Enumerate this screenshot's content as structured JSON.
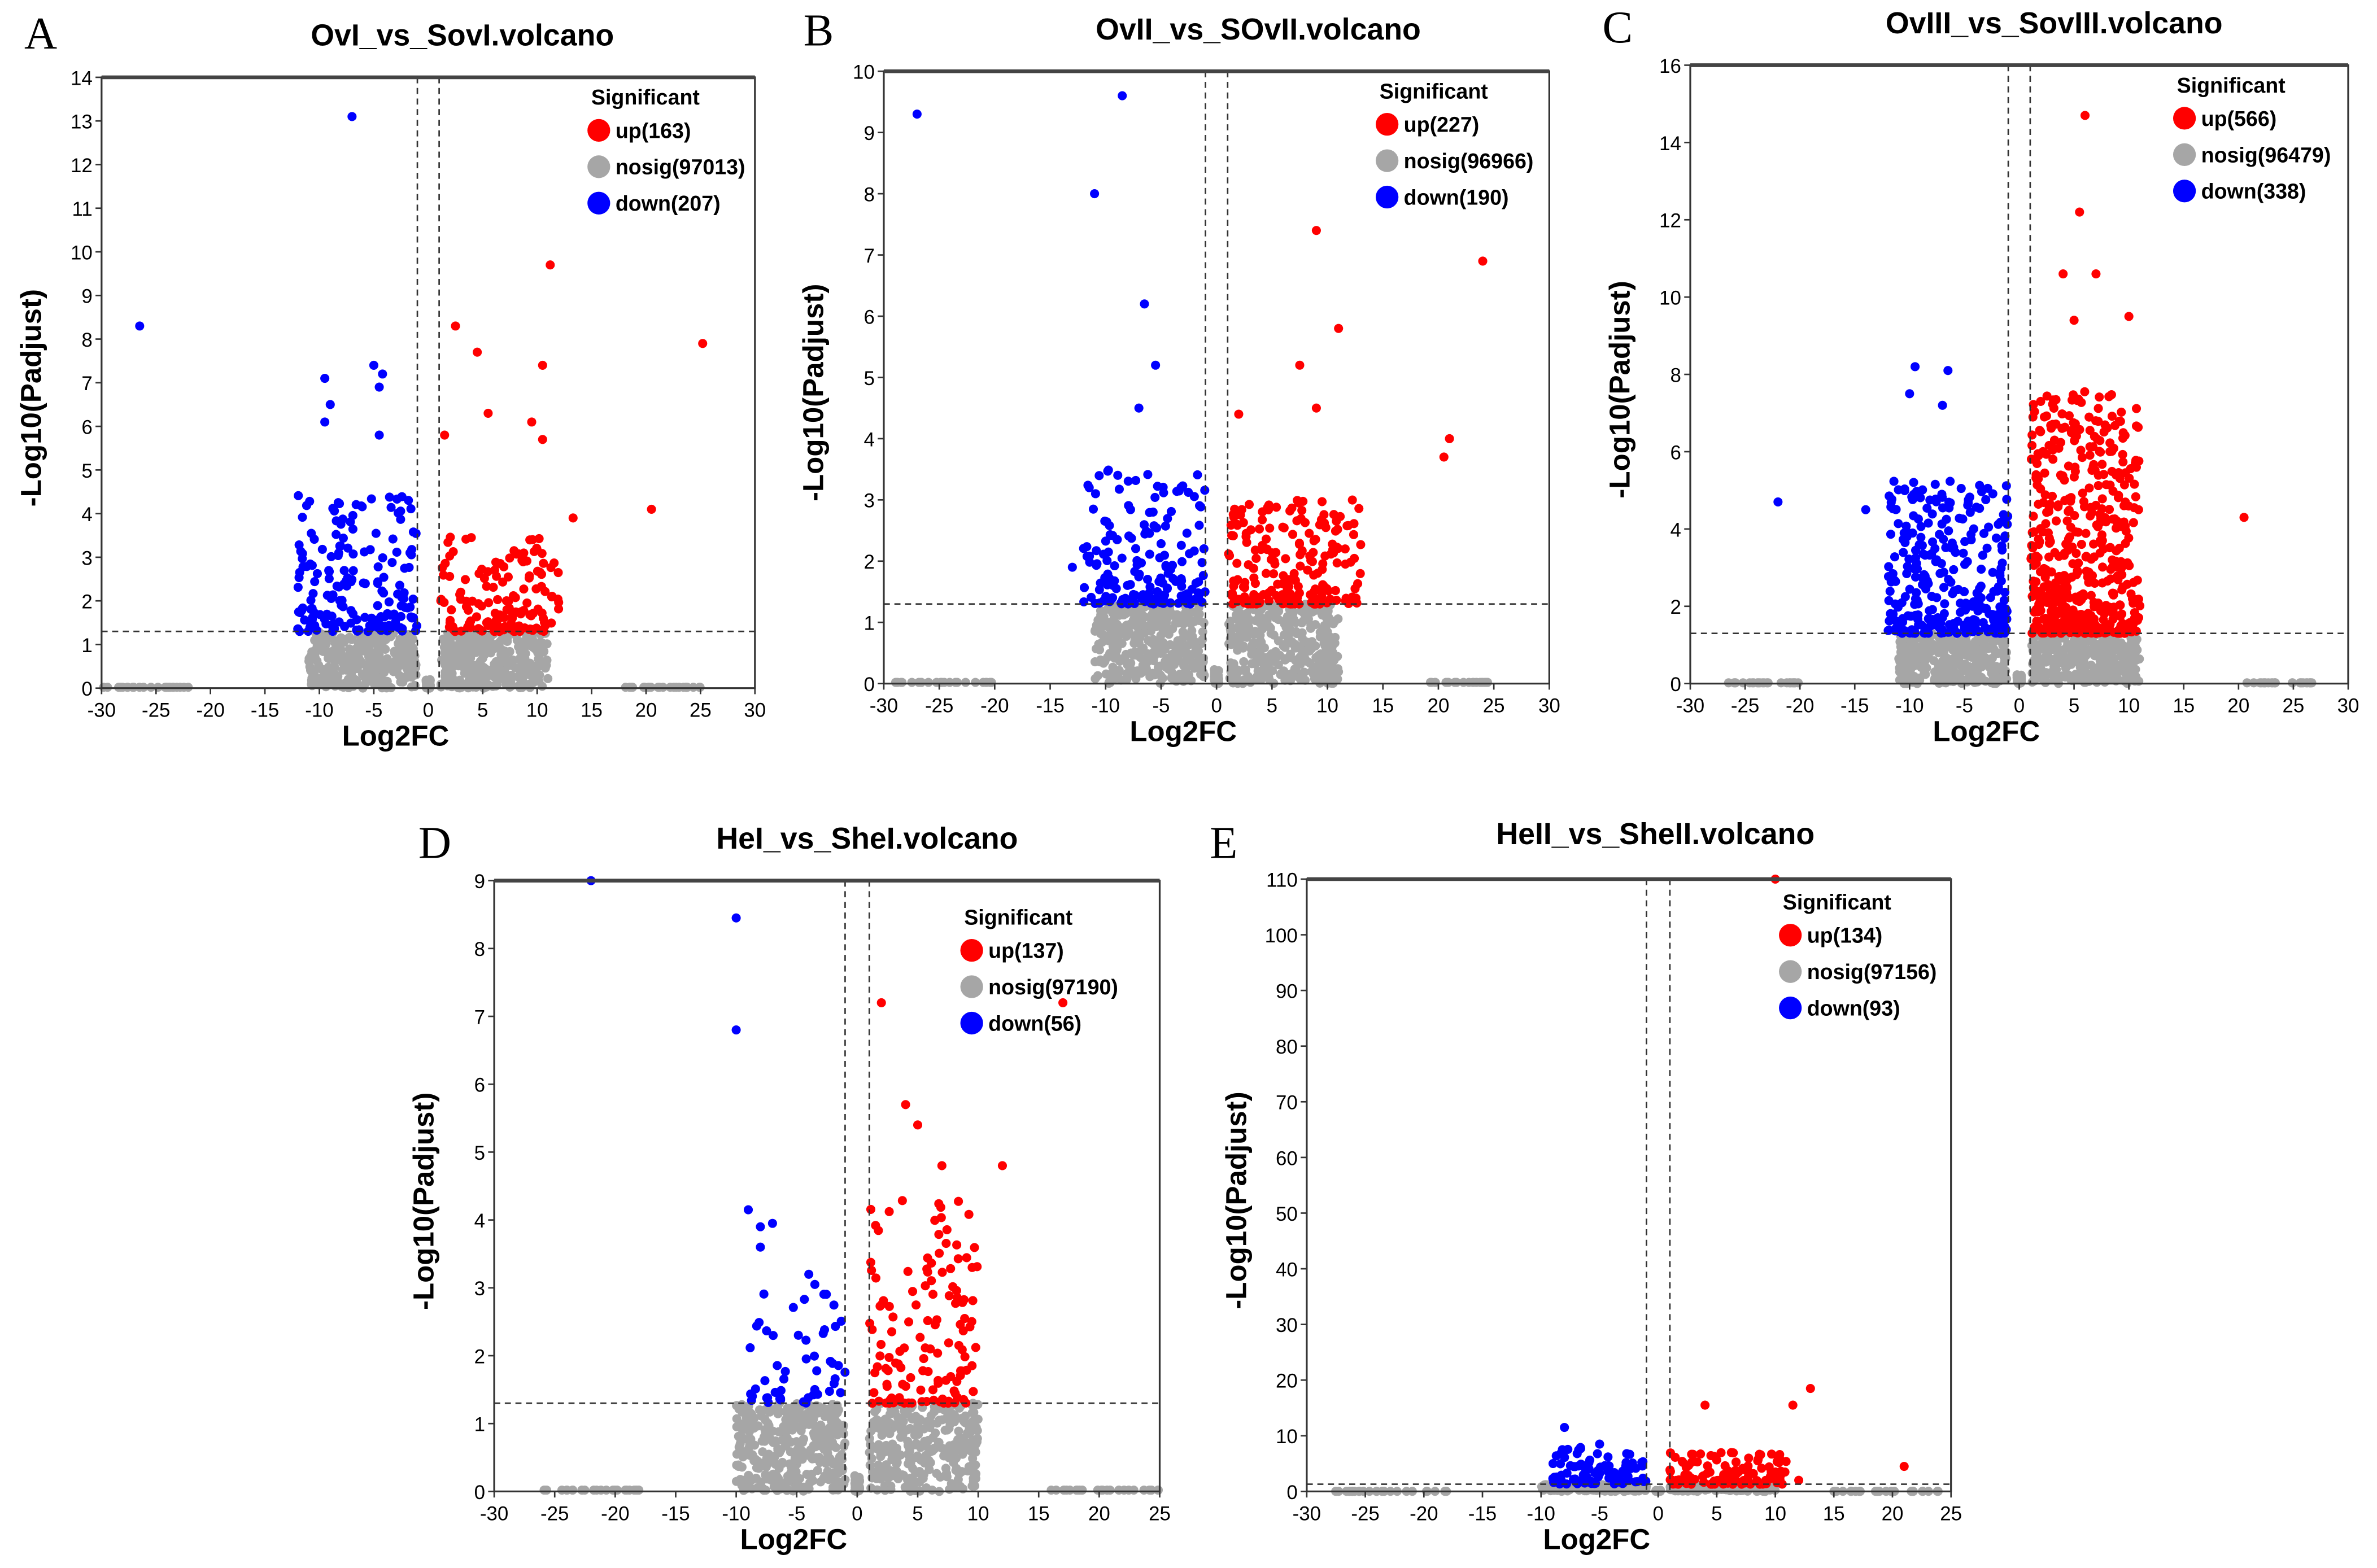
{
  "colors": {
    "up": "#ff0000",
    "nosig": "#a6a6a6",
    "down": "#0000ff"
  },
  "chart_data": [
    {
      "type": "scatter",
      "letter": "A",
      "title": "OvI_vs_SovI.volcano",
      "xlabel": "Log2FC",
      "ylabel": "-Log10(Padjust)",
      "xlim": [
        -30,
        30
      ],
      "ylim": [
        0,
        14
      ],
      "xticks": [
        -30,
        -25,
        -20,
        -15,
        -10,
        -5,
        0,
        5,
        10,
        15,
        20,
        25,
        30
      ],
      "yticks": [
        0,
        1,
        2,
        3,
        4,
        5,
        6,
        7,
        8,
        9,
        10,
        11,
        12,
        13,
        14
      ],
      "thresholds": {
        "log2fc": [
          -1,
          1
        ],
        "neglog10padj": 1.3
      },
      "legend": {
        "title": "Significant",
        "position": "top-right",
        "items": [
          "up(163)",
          "nosig(97013)",
          "down(207)"
        ]
      },
      "counts": {
        "up": 163,
        "nosig": 97013,
        "down": 207
      },
      "points": {
        "down": [
          [
            -7,
            13.1
          ],
          [
            -26.5,
            8.3
          ],
          [
            -9.5,
            7.1
          ],
          [
            -5,
            7.4
          ],
          [
            -4.2,
            7.2
          ],
          [
            -9,
            6.5
          ],
          [
            -4.5,
            6.9
          ],
          [
            -9.5,
            6.1
          ],
          [
            -4.5,
            5.8
          ]
        ],
        "up": [
          [
            11.2,
            9.7
          ],
          [
            2.5,
            8.3
          ],
          [
            4.5,
            7.7
          ],
          [
            25.2,
            7.9
          ],
          [
            10.5,
            7.4
          ],
          [
            20.5,
            4.1
          ],
          [
            13.3,
            3.9
          ],
          [
            5.5,
            6.3
          ],
          [
            9.5,
            6.1
          ],
          [
            1.5,
            5.8
          ],
          [
            10.5,
            5.7
          ]
        ]
      },
      "clusters": {
        "down": {
          "x": [
            -12,
            -1
          ],
          "y": [
            1.3,
            4.5
          ],
          "n": 180
        },
        "up": {
          "x": [
            1,
            12
          ],
          "y": [
            1.3,
            3.5
          ],
          "n": 150
        },
        "nosig": {
          "x": [
            -11,
            11
          ],
          "y": [
            0,
            1.3
          ],
          "n": 700
        },
        "nosig_tails": [
          [
            -30,
            -22
          ],
          [
            18,
            25
          ]
        ]
      }
    },
    {
      "type": "scatter",
      "letter": "B",
      "title": "OvII_vs_SOvII.volcano",
      "xlabel": "Log2FC",
      "ylabel": "-Log10(Padjust)",
      "xlim": [
        -30,
        30
      ],
      "ylim": [
        0,
        10
      ],
      "xticks": [
        -30,
        -25,
        -20,
        -15,
        -10,
        -5,
        0,
        5,
        10,
        15,
        20,
        25,
        30
      ],
      "yticks": [
        0,
        1,
        2,
        3,
        4,
        5,
        6,
        7,
        8,
        9,
        10
      ],
      "thresholds": {
        "log2fc": [
          -1,
          1
        ],
        "neglog10padj": 1.3
      },
      "legend": {
        "title": "Significant",
        "position": "top-right",
        "items": [
          "up(227)",
          "nosig(96966)",
          "down(190)"
        ]
      },
      "counts": {
        "up": 227,
        "nosig": 96966,
        "down": 190
      },
      "points": {
        "down": [
          [
            -27,
            9.3
          ],
          [
            -8.5,
            9.6
          ],
          [
            -11,
            8
          ],
          [
            -6.5,
            6.2
          ],
          [
            -5.5,
            5.2
          ],
          [
            -7,
            4.5
          ],
          [
            -13,
            1.9
          ]
        ],
        "up": [
          [
            9,
            7.4
          ],
          [
            24,
            6.9
          ],
          [
            11,
            5.8
          ],
          [
            7.5,
            5.2
          ],
          [
            21,
            4
          ],
          [
            20.5,
            3.7
          ],
          [
            9,
            4.5
          ],
          [
            2,
            4.4
          ]
        ]
      },
      "clusters": {
        "down": {
          "x": [
            -12,
            -1
          ],
          "y": [
            1.3,
            3.5
          ],
          "n": 170
        },
        "up": {
          "x": [
            1,
            13
          ],
          "y": [
            1.3,
            3
          ],
          "n": 200
        },
        "nosig": {
          "x": [
            -11,
            11
          ],
          "y": [
            0,
            1.3
          ],
          "n": 700
        },
        "nosig_tails": [
          [
            -30,
            -20
          ],
          [
            19,
            25
          ]
        ]
      }
    },
    {
      "type": "scatter",
      "letter": "C",
      "title": "OvIII_vs_SovIII.volcano",
      "xlabel": "Log2FC",
      "ylabel": "-Log10(Padjust)",
      "xlim": [
        -30,
        30
      ],
      "ylim": [
        0,
        16
      ],
      "xticks": [
        -30,
        -25,
        -20,
        -15,
        -10,
        -5,
        0,
        5,
        10,
        15,
        20,
        25,
        30
      ],
      "yticks": [
        0,
        2,
        4,
        6,
        8,
        10,
        12,
        14,
        16
      ],
      "thresholds": {
        "log2fc": [
          -1,
          1
        ],
        "neglog10padj": 1.3
      },
      "legend": {
        "title": "Significant",
        "position": "top-right",
        "items": [
          "up(566)",
          "nosig(96479)",
          "down(338)"
        ]
      },
      "counts": {
        "up": 566,
        "nosig": 96479,
        "down": 338
      },
      "points": {
        "up": [
          [
            6,
            14.7
          ],
          [
            5.5,
            12.2
          ],
          [
            4,
            10.6
          ],
          [
            7,
            10.6
          ],
          [
            10,
            9.5
          ],
          [
            5,
            9.4
          ],
          [
            20.5,
            4.3
          ]
        ],
        "down": [
          [
            -9.5,
            8.2
          ],
          [
            -6.5,
            8.1
          ],
          [
            -10,
            7.5
          ],
          [
            -22,
            4.7
          ],
          [
            -14,
            4.5
          ],
          [
            -7,
            7.2
          ]
        ]
      },
      "clusters": {
        "down": {
          "x": [
            -12,
            -1
          ],
          "y": [
            1.3,
            5.3
          ],
          "n": 300
        },
        "up": {
          "x": [
            1,
            11
          ],
          "y": [
            1.3,
            7.6
          ],
          "n": 500
        },
        "nosig": {
          "x": [
            -11,
            11
          ],
          "y": [
            0,
            1.3
          ],
          "n": 700
        },
        "nosig_tails": [
          [
            -27,
            -20
          ],
          [
            20,
            27
          ]
        ]
      }
    },
    {
      "type": "scatter",
      "letter": "D",
      "title": "HeI_vs_SheI.volcano",
      "xlabel": "Log2FC",
      "ylabel": "-Log10(Padjust)",
      "xlim": [
        -30,
        25
      ],
      "ylim": [
        0,
        9
      ],
      "xticks": [
        -30,
        -25,
        -20,
        -15,
        -10,
        -5,
        0,
        5,
        10,
        15,
        20,
        25
      ],
      "yticks": [
        0,
        1,
        2,
        3,
        4,
        5,
        6,
        7,
        8,
        9
      ],
      "thresholds": {
        "log2fc": [
          -1,
          1
        ],
        "neglog10padj": 1.3
      },
      "legend": {
        "title": "Significant",
        "position": "top-right",
        "items": [
          "up(137)",
          "nosig(97190)",
          "down(56)"
        ]
      },
      "counts": {
        "up": 137,
        "nosig": 97190,
        "down": 56
      },
      "points": {
        "down": [
          [
            -22,
            9
          ],
          [
            -10,
            8.45
          ],
          [
            -10,
            6.8
          ],
          [
            -9,
            4.15
          ],
          [
            -8,
            3.9
          ],
          [
            -7,
            3.95
          ],
          [
            -8,
            3.6
          ],
          [
            -4,
            3.2
          ],
          [
            -3.5,
            3.05
          ]
        ],
        "up": [
          [
            2,
            7.2
          ],
          [
            17,
            7.2
          ],
          [
            4,
            5.7
          ],
          [
            5,
            5.4
          ],
          [
            12,
            4.8
          ],
          [
            7,
            4.8
          ],
          [
            9.5,
            3.3
          ]
        ]
      },
      "clusters": {
        "down": {
          "x": [
            -9,
            -1
          ],
          "y": [
            1.3,
            3
          ],
          "n": 50
        },
        "up": {
          "x": [
            1,
            10
          ],
          "y": [
            1.3,
            4.3
          ],
          "n": 130
        },
        "nosig": {
          "x": [
            -10,
            10
          ],
          "y": [
            0,
            1.3
          ],
          "n": 700
        },
        "nosig_tails": [
          [
            -26,
            -18
          ],
          [
            16,
            25
          ]
        ]
      }
    },
    {
      "type": "scatter",
      "letter": "E",
      "title": "HeII_vs_SheII.volcano",
      "xlabel": "Log2FC",
      "ylabel": "-Log10(Padjust)",
      "xlim": [
        -30,
        25
      ],
      "ylim": [
        0,
        110
      ],
      "xticks": [
        -30,
        -25,
        -20,
        -15,
        -10,
        -5,
        0,
        5,
        10,
        15,
        20,
        25
      ],
      "yticks": [
        0,
        10,
        20,
        30,
        40,
        50,
        60,
        70,
        80,
        90,
        100,
        110
      ],
      "thresholds": {
        "log2fc": [
          -1,
          1
        ],
        "neglog10padj": 1.3
      },
      "legend": {
        "title": "Significant",
        "position": "top-right",
        "items": [
          "up(134)",
          "nosig(97156)",
          "down(93)"
        ]
      },
      "counts": {
        "up": 134,
        "nosig": 97156,
        "down": 93
      },
      "points": {
        "up": [
          [
            10,
            110
          ],
          [
            13,
            18.5
          ],
          [
            11.5,
            15.5
          ],
          [
            4,
            15.5
          ],
          [
            21,
            4.5
          ],
          [
            12,
            2
          ]
        ],
        "down": [
          [
            -8,
            11.5
          ],
          [
            -5,
            8.5
          ]
        ]
      },
      "clusters": {
        "down": {
          "x": [
            -9,
            -1
          ],
          "y": [
            1.3,
            8
          ],
          "n": 85
        },
        "up": {
          "x": [
            1,
            11
          ],
          "y": [
            1.3,
            7
          ],
          "n": 125
        },
        "nosig": {
          "x": [
            -10,
            10
          ],
          "y": [
            0,
            1.3
          ],
          "n": 400
        },
        "nosig_tails": [
          [
            -28,
            -18
          ],
          [
            15,
            25
          ]
        ]
      }
    }
  ]
}
